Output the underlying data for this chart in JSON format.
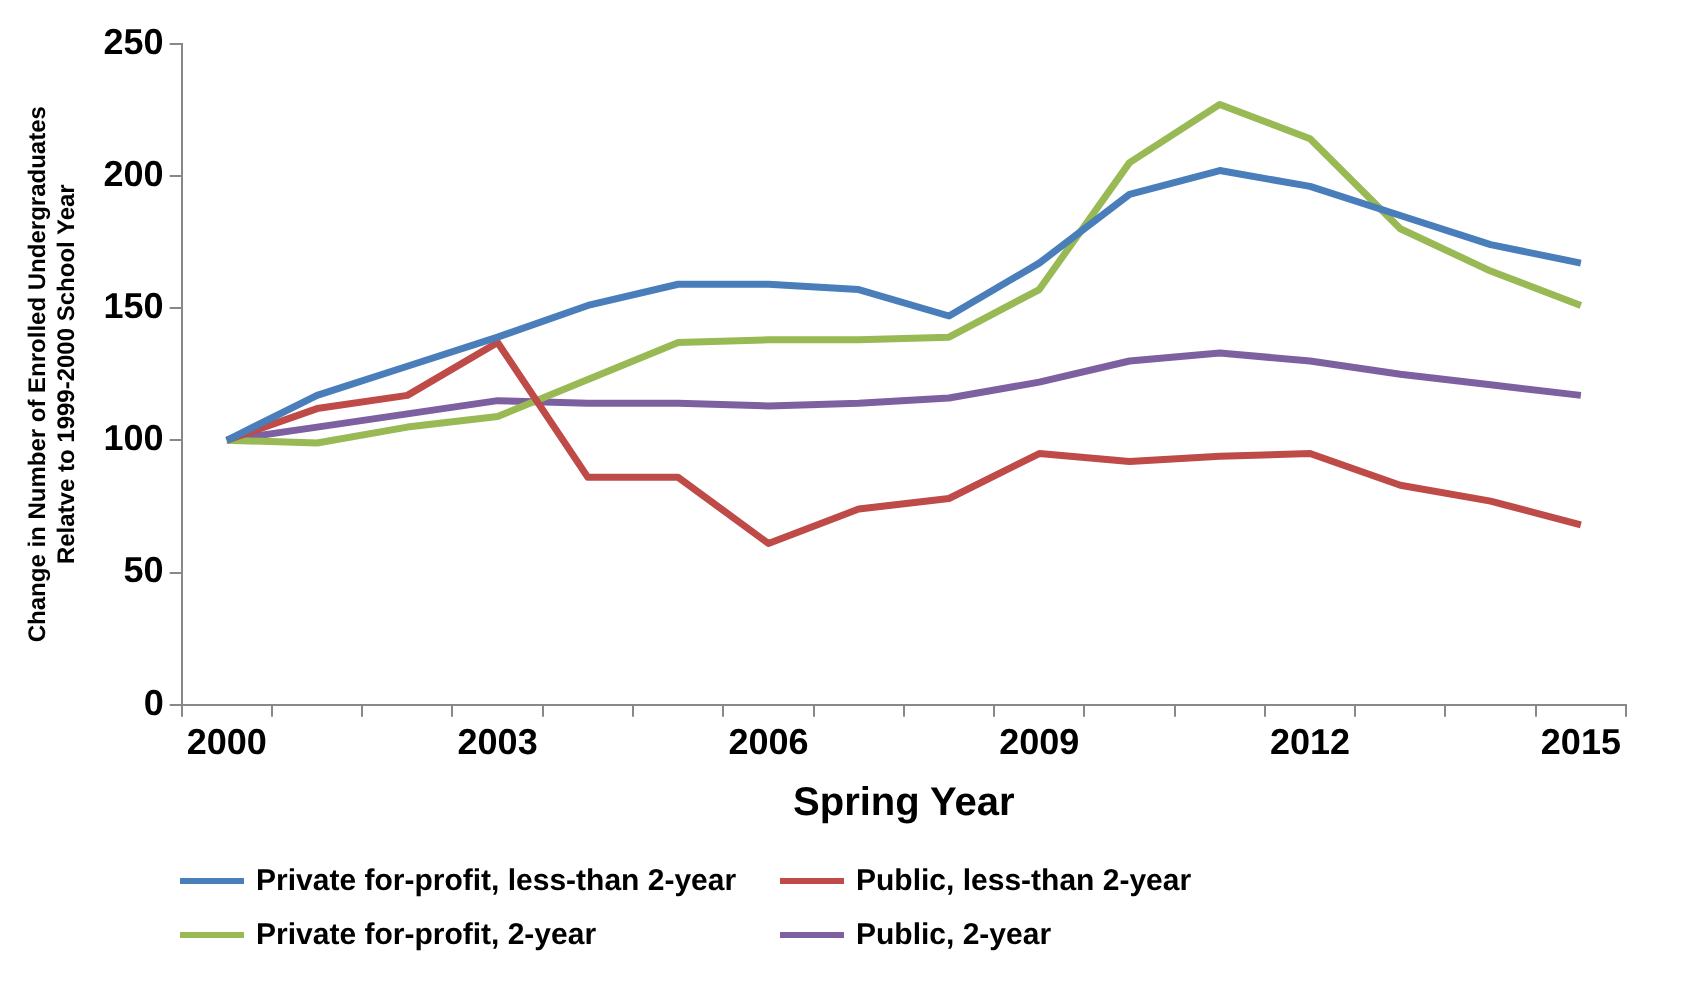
{
  "chart_data": {
    "type": "line",
    "xlabel": "Spring Year",
    "ylabel": "Change in Number of Enrolled Undergraduates Relatve to 1999-2000 School Year",
    "categories": [
      "2000",
      null,
      null,
      "2003",
      null,
      null,
      "2006",
      null,
      null,
      "2009",
      null,
      null,
      "2012",
      null,
      null,
      "2015"
    ],
    "series": [
      {
        "name": "Private for-profit, less-than 2-year",
        "color": "#4a7ebb",
        "values": [
          100,
          117,
          128,
          139,
          151,
          159,
          159,
          157,
          147,
          167,
          193,
          202,
          196,
          185,
          174,
          167
        ]
      },
      {
        "name": "Public, less-than 2-year",
        "color": "#be4b48",
        "values": [
          100,
          112,
          117,
          137,
          86,
          86,
          61,
          74,
          78,
          95,
          92,
          94,
          95,
          83,
          77,
          68
        ]
      },
      {
        "name": "Private for-profit, 2-year",
        "color": "#98b954",
        "values": [
          100,
          99,
          105,
          109,
          123,
          137,
          138,
          138,
          139,
          157,
          205,
          227,
          214,
          180,
          164,
          151
        ]
      },
      {
        "name": "Public, 2-year",
        "color": "#7d60a0",
        "values": [
          100,
          105,
          110,
          115,
          114,
          114,
          113,
          114,
          116,
          122,
          130,
          133,
          130,
          125,
          121,
          117
        ]
      }
    ],
    "ylim": [
      0,
      250
    ],
    "yticks": [
      0,
      50,
      100,
      150,
      200,
      250
    ],
    "grid": false,
    "legend": "bottom",
    "marker": "none",
    "line_style": "solid"
  }
}
